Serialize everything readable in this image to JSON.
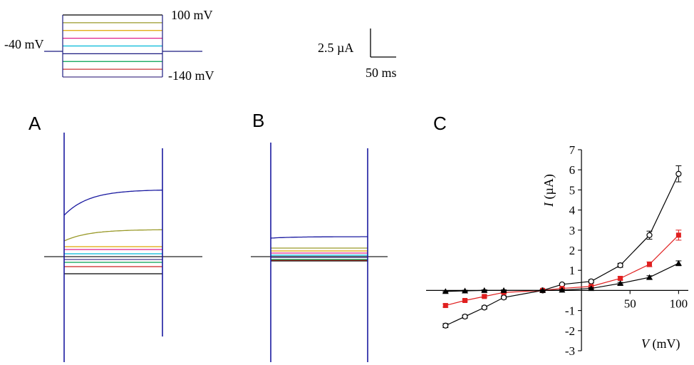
{
  "protocol": {
    "holding_label": "-40 mV",
    "top_label": "100 mV",
    "bottom_label": "-140 mV",
    "step_colors": [
      "#000000",
      "#9a9a2a",
      "#e0a400",
      "#e0208a",
      "#00b8d8",
      "#1a1a80",
      "#00a050",
      "#cc3333",
      "#4b3a8a"
    ]
  },
  "scale_bar": {
    "current_label": "2.5 µA",
    "time_label": "50 ms"
  },
  "panels": {
    "a_label": "A",
    "b_label": "B",
    "c_label": "C"
  },
  "traces_colors": [
    "#000000",
    "#cc2222",
    "#00a050",
    "#4b3a8a",
    "#00b8d8",
    "#e0208a",
    "#e0a400",
    "#9a9a2a",
    "#1a1aa0"
  ],
  "chart_data": {
    "type": "line",
    "xlabel_italic": "V",
    "xlabel_unit": " (mV)",
    "ylabel_italic": "I",
    "ylabel_unit": " (µA)",
    "xlim": [
      -160,
      110
    ],
    "ylim": [
      -3,
      7
    ],
    "x_ticks": [
      50,
      100
    ],
    "y_ticks": [
      -3,
      -2,
      -1,
      1,
      2,
      3,
      4,
      5,
      6,
      7
    ],
    "x": [
      -140,
      -120,
      -100,
      -80,
      -40,
      -20,
      10,
      40,
      70,
      100
    ],
    "series": [
      {
        "marker": "circle-open",
        "color": "#000000",
        "values": [
          -1.75,
          -1.3,
          -0.85,
          -0.35,
          0.0,
          0.3,
          0.45,
          1.25,
          2.75,
          5.8
        ],
        "errors": [
          0.1,
          0.08,
          0.08,
          0.08,
          0.05,
          0.05,
          0.08,
          0.1,
          0.2,
          0.4
        ]
      },
      {
        "marker": "square-filled",
        "color": "#e02020",
        "values": [
          -0.75,
          -0.5,
          -0.3,
          -0.1,
          0.0,
          0.1,
          0.2,
          0.6,
          1.3,
          2.75
        ],
        "errors": [
          0.08,
          0.06,
          0.06,
          0.05,
          0.04,
          0.04,
          0.05,
          0.08,
          0.12,
          0.25
        ]
      },
      {
        "marker": "triangle-filled",
        "color": "#000000",
        "values": [
          -0.05,
          -0.02,
          0.0,
          0.0,
          0.0,
          0.02,
          0.1,
          0.35,
          0.65,
          1.35
        ],
        "errors": [
          0.03,
          0.03,
          0.03,
          0.03,
          0.03,
          0.03,
          0.04,
          0.05,
          0.08,
          0.12
        ]
      }
    ]
  }
}
